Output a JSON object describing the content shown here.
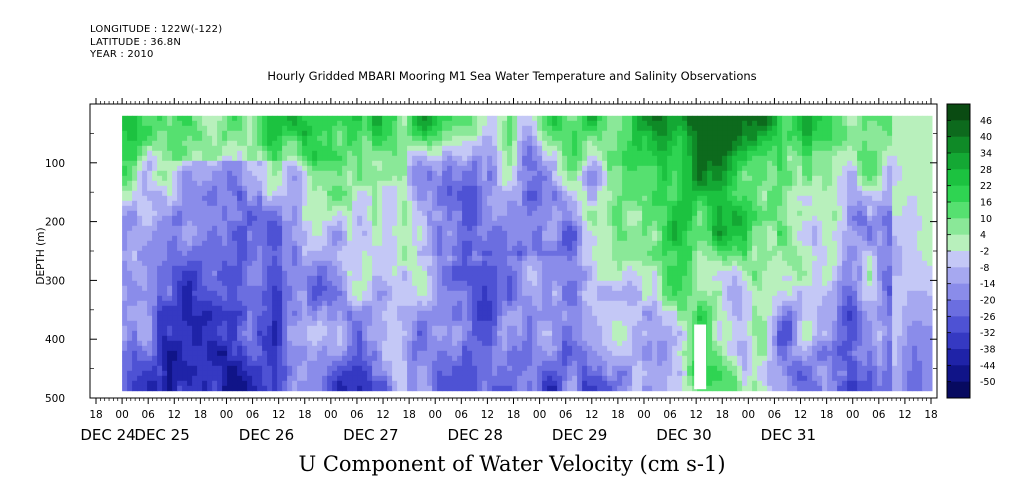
{
  "header": {
    "longitude": "LONGITUDE : 122W(-122)",
    "latitude": "LATITUDE : 36.8N",
    "year": "YEAR : 2010"
  },
  "title": "Hourly Gridded MBARI Mooring M1 Sea Water Temperature and Salinity Observations",
  "xlabel": "U Component of Water Velocity (cm s-1)",
  "ylabel": "DEPTH (m)",
  "chart_data": {
    "type": "heatmap",
    "title": "Hourly Gridded MBARI Mooring M1 Sea Water Temperature and Salinity Observations",
    "xlabel": "",
    "ylabel": "DEPTH (m)",
    "colorbar_label": "U Component of Water Velocity (cm s-1)",
    "x_axis": {
      "hour_ticks": [
        "18",
        "00",
        "06",
        "12",
        "18",
        "00",
        "06",
        "12",
        "18",
        "00",
        "06",
        "12",
        "18",
        "00",
        "06",
        "12",
        "18",
        "00",
        "06",
        "12",
        "18",
        "00",
        "06",
        "12",
        "18",
        "00",
        "06",
        "12",
        "18",
        "00",
        "06",
        "12",
        "18"
      ],
      "day_labels": [
        "DEC 24",
        "DEC 25",
        "DEC 26",
        "DEC 27",
        "DEC 28",
        "DEC 29",
        "DEC 30",
        "DEC 31"
      ],
      "range": [
        "2010-12-24 18:00",
        "2010-12-31 18:00"
      ]
    },
    "y_axis": {
      "ticks": [
        100,
        200,
        300,
        400,
        500
      ],
      "range": [
        500,
        0
      ],
      "inverted": true
    },
    "data_extent": {
      "time_start": "2010-12-25 00:00",
      "time_end": "2010-12-31 18:00",
      "depth_top": 20,
      "depth_bottom": 485
    },
    "colorbar": {
      "levels": [
        46,
        40,
        34,
        28,
        22,
        16,
        10,
        4,
        -2,
        -8,
        -14,
        -20,
        -26,
        -32,
        -38,
        -44,
        -50
      ],
      "colors": [
        "#0a4b12",
        "#0d6a1d",
        "#0f8a27",
        "#14a834",
        "#1cc240",
        "#2fd452",
        "#56e070",
        "#8ae898",
        "#b8f0bc",
        "#c4c8f6",
        "#a6a8f0",
        "#8a8cea",
        "#6b6ee0",
        "#4e52d4",
        "#3539c2",
        "#1f23a8",
        "#101488",
        "#070a60"
      ],
      "range": [
        -50,
        50
      ]
    },
    "description_values": {
      "surface_layer_0_100m": "mostly positive 10 to 40",
      "dec25_dec26_mid_depth": "negative -10 to -30",
      "dec30": "positive 10 to 40 throughout column"
    }
  }
}
